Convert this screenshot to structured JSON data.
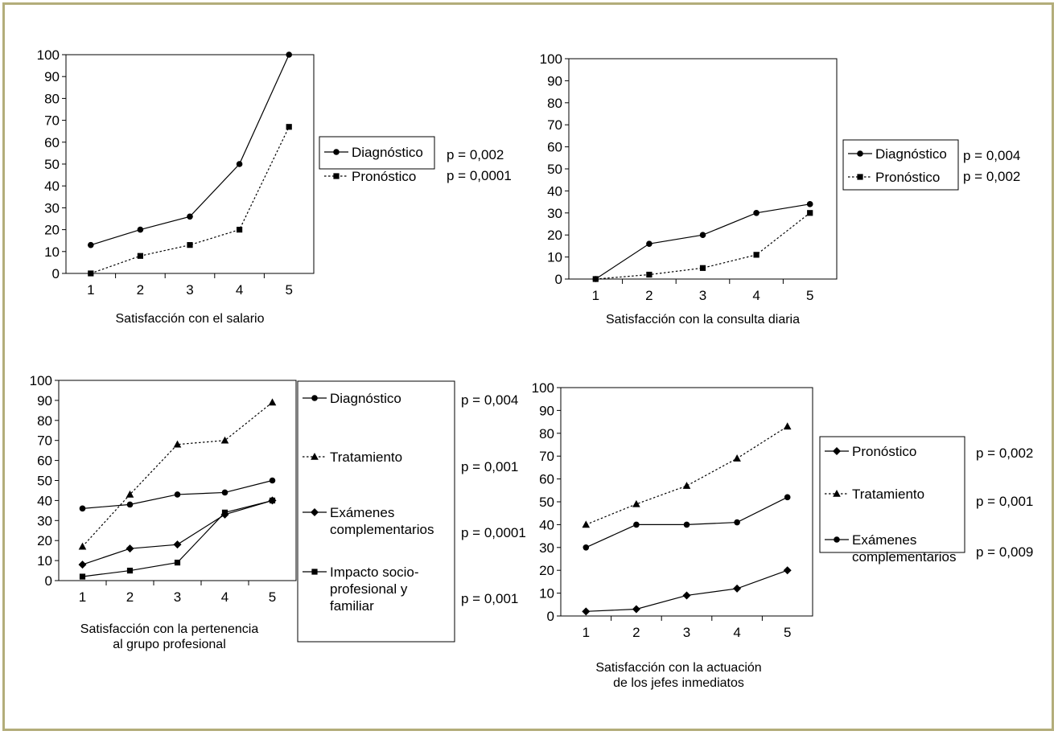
{
  "chart_data": [
    {
      "type": "line",
      "x": [
        1,
        2,
        3,
        4,
        5
      ],
      "ylim": [
        0,
        100
      ],
      "yticks": [
        0,
        10,
        20,
        30,
        40,
        50,
        60,
        70,
        80,
        90,
        100
      ],
      "xlabel": [
        "Satisfacción con el salario"
      ],
      "ylabel": "",
      "series": [
        {
          "name": [
            "Diagnóstico"
          ],
          "marker": "circle",
          "dashed": false,
          "values": [
            13,
            20,
            26,
            50,
            100
          ],
          "p": "p = 0,002"
        },
        {
          "name": [
            "Pronóstico"
          ],
          "marker": "square",
          "dashed": true,
          "values": [
            0,
            8,
            13,
            20,
            67
          ],
          "p": "p = 0,0001"
        }
      ]
    },
    {
      "type": "line",
      "x": [
        1,
        2,
        3,
        4,
        5
      ],
      "ylim": [
        0,
        100
      ],
      "yticks": [
        0,
        10,
        20,
        30,
        40,
        50,
        60,
        70,
        80,
        90,
        100
      ],
      "xlabel": [
        "Satisfacción con la consulta diaria"
      ],
      "ylabel": "",
      "series": [
        {
          "name": [
            "Diagnóstico"
          ],
          "marker": "circle",
          "dashed": false,
          "values": [
            0,
            16,
            20,
            30,
            34
          ],
          "p": "p = 0,004"
        },
        {
          "name": [
            "Pronóstico"
          ],
          "marker": "square",
          "dashed": true,
          "values": [
            0,
            2,
            5,
            11,
            30
          ],
          "p": "p = 0,002"
        }
      ]
    },
    {
      "type": "line",
      "x": [
        1,
        2,
        3,
        4,
        5
      ],
      "ylim": [
        0,
        100
      ],
      "yticks": [
        0,
        10,
        20,
        30,
        40,
        50,
        60,
        70,
        80,
        90,
        100
      ],
      "xlabel": [
        "Satisfacción con la pertenencia",
        "al grupo profesional"
      ],
      "ylabel": "",
      "series": [
        {
          "name": [
            "Diagnóstico"
          ],
          "marker": "circle",
          "dashed": false,
          "values": [
            36,
            38,
            43,
            44,
            50
          ],
          "p": "p = 0,004"
        },
        {
          "name": [
            "Tratamiento"
          ],
          "marker": "triangle",
          "dashed": true,
          "values": [
            17,
            43,
            68,
            70,
            89
          ],
          "p": "p = 0,001"
        },
        {
          "name": [
            "Exámenes",
            "complementarios"
          ],
          "marker": "diamond",
          "dashed": false,
          "values": [
            8,
            16,
            18,
            33,
            40
          ],
          "p": "p = 0,0001"
        },
        {
          "name": [
            "Impacto socio-",
            "profesional y",
            "familiar"
          ],
          "marker": "square",
          "dashed": false,
          "values": [
            2,
            5,
            9,
            34,
            40
          ],
          "p": "p = 0,001"
        }
      ]
    },
    {
      "type": "line",
      "x": [
        1,
        2,
        3,
        4,
        5
      ],
      "ylim": [
        0,
        100
      ],
      "yticks": [
        0,
        10,
        20,
        30,
        40,
        50,
        60,
        70,
        80,
        90,
        100
      ],
      "xlabel": [
        "Satisfacción con la actuación",
        "de los jefes inmediatos"
      ],
      "ylabel": "",
      "series": [
        {
          "name": [
            "Pronóstico"
          ],
          "marker": "diamond",
          "dashed": false,
          "values": [
            2,
            3,
            9,
            12,
            20
          ],
          "p": "p = 0,002"
        },
        {
          "name": [
            "Tratamiento"
          ],
          "marker": "triangle",
          "dashed": true,
          "values": [
            40,
            49,
            57,
            69,
            83
          ],
          "p": "p = 0,001"
        },
        {
          "name": [
            "Exámenes",
            "complementarios"
          ],
          "marker": "circle",
          "dashed": false,
          "values": [
            30,
            40,
            40,
            41,
            52
          ],
          "p": "p = 0,009"
        }
      ]
    }
  ]
}
